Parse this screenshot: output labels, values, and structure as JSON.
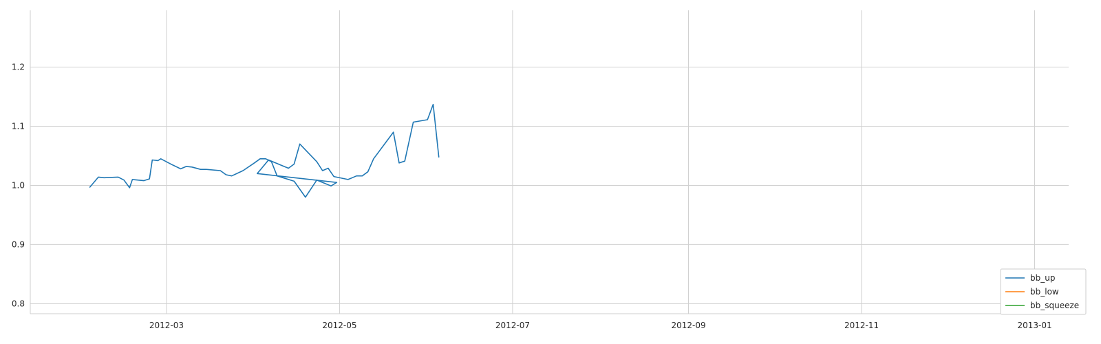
{
  "chart_data": {
    "type": "line",
    "title": "",
    "xlabel": "",
    "ylabel": "",
    "x_tick_labels": [
      "2012-03",
      "2012-05",
      "2012-07",
      "2012-09",
      "2012-11",
      "2013-01"
    ],
    "x_tick_values": [
      "2012-03-01",
      "2012-05-01",
      "2012-07-01",
      "2012-09-01",
      "2012-11-01",
      "2013-01-01"
    ],
    "y_ticks": [
      0.8,
      0.9,
      1.0,
      1.1,
      1.2
    ],
    "y_tick_labels": [
      "0.8",
      "0.9",
      "1.0",
      "1.1",
      "1.2"
    ],
    "xlim": [
      "2012-01-13",
      "2013-01-13"
    ],
    "ylim": [
      0.783,
      1.296
    ],
    "grid": true,
    "legend_position": "bottom-right",
    "colors": {
      "bb_up": "#1f77b4",
      "bb_low": "#ff7f0e",
      "bb_squeeze": "#2ca02c"
    },
    "series": [
      {
        "name": "bb_up",
        "color": "#1f77b4",
        "points": [
          [
            "2012-02-03",
            0.997
          ],
          [
            "2012-02-06",
            1.014
          ],
          [
            "2012-02-08",
            1.013
          ],
          [
            "2012-02-13",
            1.014
          ],
          [
            "2012-02-15",
            1.009
          ],
          [
            "2012-02-17",
            0.996
          ],
          [
            "2012-02-18",
            1.01
          ],
          [
            "2012-02-22",
            1.008
          ],
          [
            "2012-02-24",
            1.011
          ],
          [
            "2012-02-25",
            1.043
          ],
          [
            "2012-02-27",
            1.042
          ],
          [
            "2012-02-28",
            1.045
          ],
          [
            "2012-03-03",
            1.035
          ],
          [
            "2012-03-06",
            1.028
          ],
          [
            "2012-03-08",
            1.032
          ],
          [
            "2012-03-10",
            1.031
          ],
          [
            "2012-03-13",
            1.027
          ],
          [
            "2012-03-15",
            1.027
          ],
          [
            "2012-03-20",
            1.025
          ],
          [
            "2012-03-22",
            1.018
          ],
          [
            "2012-03-24",
            1.016
          ],
          [
            "2012-03-28",
            1.025
          ],
          [
            "2012-04-01",
            1.038
          ],
          [
            "2012-04-03",
            1.045
          ],
          [
            "2012-04-05",
            1.045
          ],
          [
            "2012-04-07",
            1.04
          ],
          [
            "2012-04-09",
            1.016
          ],
          [
            "2012-04-15",
            1.007
          ],
          [
            "2012-04-19",
            0.98
          ],
          [
            "2012-04-23",
            1.009
          ],
          [
            "2012-04-28",
            0.999
          ],
          [
            "2012-04-30",
            1.005
          ],
          [
            "2012-04-02",
            1.02
          ],
          [
            "2012-04-06",
            1.043
          ],
          [
            "2012-04-11",
            1.033
          ],
          [
            "2012-04-13",
            1.029
          ],
          [
            "2012-04-15",
            1.036
          ],
          [
            "2012-04-17",
            1.07
          ],
          [
            "2012-04-23",
            1.04
          ],
          [
            "2012-04-25",
            1.025
          ],
          [
            "2012-04-27",
            1.029
          ],
          [
            "2012-04-29",
            1.015
          ],
          [
            "2012-05-04",
            1.01
          ],
          [
            "2012-05-07",
            1.016
          ],
          [
            "2012-05-09",
            1.016
          ],
          [
            "2012-05-11",
            1.023
          ],
          [
            "2012-05-13",
            1.045
          ],
          [
            "2012-05-20",
            1.09
          ],
          [
            "2012-05-22",
            1.038
          ],
          [
            "2012-05-24",
            1.041
          ],
          [
            "2012-05-27",
            1.107
          ],
          [
            "2012-06-01",
            1.111
          ],
          [
            "2012-06-03",
            1.137
          ],
          [
            "2012-06-05",
            1.048
          ]
        ]
      },
      {
        "name": "bb_low",
        "color": "#ff7f0e",
        "points": []
      },
      {
        "name": "bb_squeeze",
        "color": "#2ca02c",
        "points": []
      }
    ]
  },
  "legend": {
    "items": [
      {
        "label": "bb_up",
        "color": "#1f77b4"
      },
      {
        "label": "bb_low",
        "color": "#ff7f0e"
      },
      {
        "label": "bb_squeeze",
        "color": "#2ca02c"
      }
    ]
  }
}
